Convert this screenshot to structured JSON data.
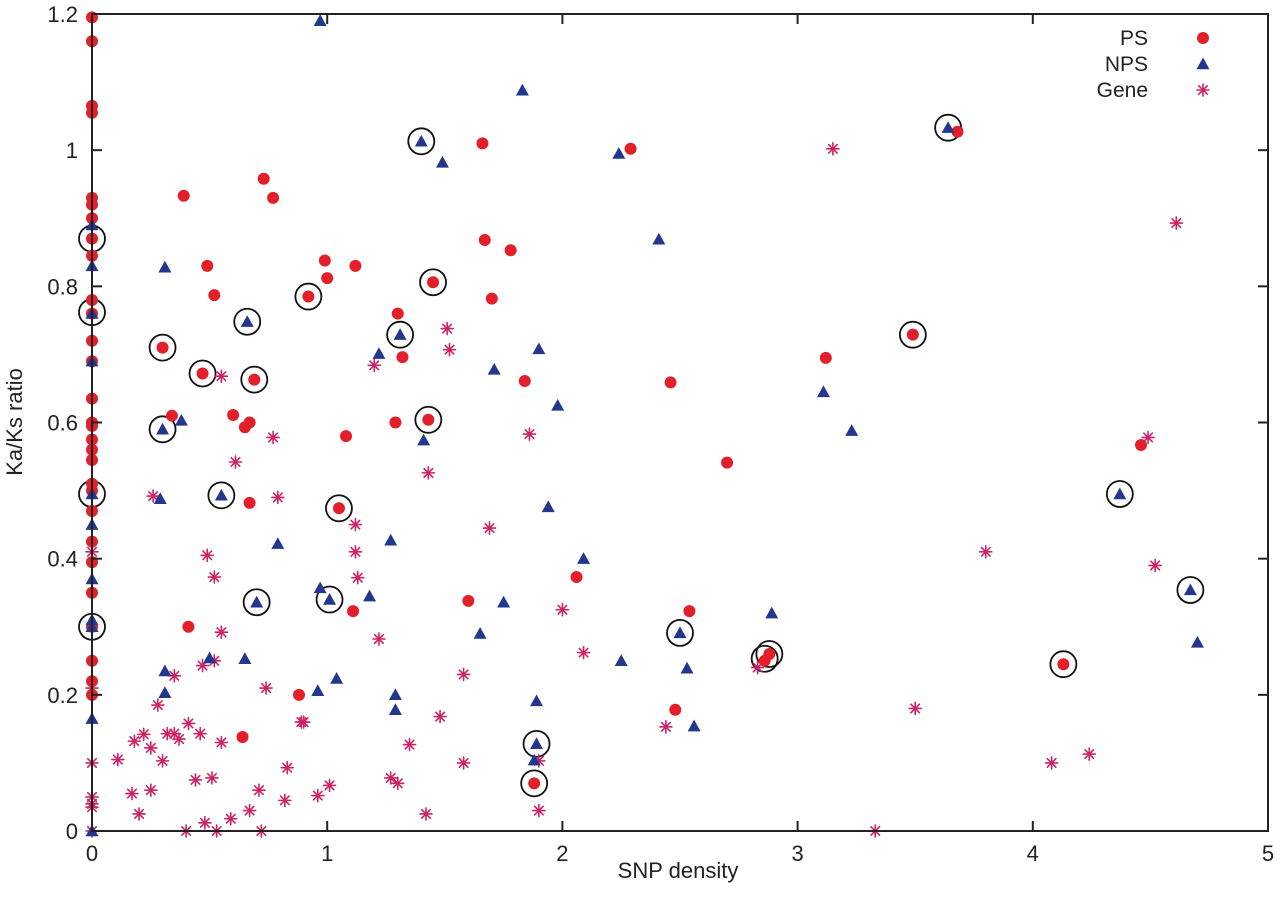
{
  "chart_data": {
    "type": "scatter",
    "xlabel": "SNP density",
    "ylabel": "Ka/Ks ratio",
    "xlim": [
      0,
      5
    ],
    "ylim": [
      0,
      1.2
    ],
    "x_ticks": [
      0,
      1,
      2,
      3,
      4,
      5
    ],
    "y_ticks": [
      0,
      0.2,
      0.4,
      0.6,
      0.8,
      1,
      1.2
    ],
    "x_tick_labels": [
      "0",
      "1",
      "2",
      "3",
      "4",
      "5"
    ],
    "y_tick_labels": [
      "0",
      "0.2",
      "0.4",
      "0.6",
      "0.8",
      "1",
      "1.2"
    ],
    "grid": false,
    "legend_position": "top-right",
    "series": [
      {
        "name": "PS",
        "marker": "circle",
        "color": "#e3202a",
        "points": [
          [
            0,
            1.195
          ],
          [
            0,
            1.16
          ],
          [
            0,
            1.065
          ],
          [
            0,
            1.055
          ],
          [
            0,
            0.93
          ],
          [
            0,
            0.92
          ],
          [
            0,
            0.9
          ],
          [
            0,
            0.87
          ],
          [
            0,
            0.845
          ],
          [
            0,
            0.78
          ],
          [
            0,
            0.76
          ],
          [
            0,
            0.72
          ],
          [
            0,
            0.69
          ],
          [
            0,
            0.635
          ],
          [
            0,
            0.6
          ],
          [
            0,
            0.595
          ],
          [
            0,
            0.575
          ],
          [
            0,
            0.56
          ],
          [
            0,
            0.545
          ],
          [
            0,
            0.51
          ],
          [
            0,
            0.5
          ],
          [
            0,
            0.47
          ],
          [
            0,
            0.425
          ],
          [
            0,
            0.395
          ],
          [
            0,
            0.35
          ],
          [
            0,
            0.3
          ],
          [
            0,
            0.25
          ],
          [
            0,
            0.22
          ],
          [
            0,
            0.2
          ],
          [
            0.3,
            0.71
          ],
          [
            0.34,
            0.61
          ],
          [
            0.39,
            0.933
          ],
          [
            0.41,
            0.3
          ],
          [
            0.47,
            0.672
          ],
          [
            0.49,
            0.83
          ],
          [
            0.52,
            0.787
          ],
          [
            0.6,
            0.611
          ],
          [
            0.64,
            0.138
          ],
          [
            0.65,
            0.593
          ],
          [
            0.67,
            0.6
          ],
          [
            0.67,
            0.482
          ],
          [
            0.69,
            0.663
          ],
          [
            0.73,
            0.958
          ],
          [
            0.77,
            0.93
          ],
          [
            0.88,
            0.2
          ],
          [
            0.92,
            0.785
          ],
          [
            0.99,
            0.838
          ],
          [
            1.0,
            0.812
          ],
          [
            1.05,
            0.474
          ],
          [
            1.08,
            0.58
          ],
          [
            1.11,
            0.323
          ],
          [
            1.12,
            0.83
          ],
          [
            1.29,
            0.6
          ],
          [
            1.3,
            0.76
          ],
          [
            1.32,
            0.696
          ],
          [
            1.43,
            0.604
          ],
          [
            1.45,
            0.806
          ],
          [
            1.6,
            0.338
          ],
          [
            1.66,
            1.01
          ],
          [
            1.67,
            0.868
          ],
          [
            1.7,
            0.782
          ],
          [
            1.78,
            0.853
          ],
          [
            1.84,
            0.661
          ],
          [
            1.88,
            0.07
          ],
          [
            2.06,
            0.373
          ],
          [
            2.29,
            1.002
          ],
          [
            2.46,
            0.659
          ],
          [
            2.48,
            0.178
          ],
          [
            2.54,
            0.323
          ],
          [
            2.7,
            0.541
          ],
          [
            2.86,
            0.25
          ],
          [
            2.88,
            0.26
          ],
          [
            3.12,
            0.695
          ],
          [
            3.49,
            0.729
          ],
          [
            3.68,
            1.027
          ],
          [
            4.13,
            0.245
          ],
          [
            4.46,
            0.567
          ]
        ]
      },
      {
        "name": "NPS",
        "marker": "triangle",
        "color": "#23378f",
        "points": [
          [
            0,
            0.89
          ],
          [
            0,
            0.83
          ],
          [
            0,
            0.76
          ],
          [
            0,
            0.69
          ],
          [
            0,
            0.495
          ],
          [
            0,
            0.45
          ],
          [
            0,
            0.37
          ],
          [
            0,
            0.31
          ],
          [
            0,
            0.3
          ],
          [
            0,
            0.165
          ],
          [
            0,
            0.0
          ],
          [
            0.29,
            0.488
          ],
          [
            0.3,
            0.59
          ],
          [
            0.31,
            0.828
          ],
          [
            0.31,
            0.235
          ],
          [
            0.31,
            0.203
          ],
          [
            0.38,
            0.603
          ],
          [
            0.5,
            0.254
          ],
          [
            0.55,
            0.493
          ],
          [
            0.65,
            0.253
          ],
          [
            0.66,
            0.748
          ],
          [
            0.7,
            0.336
          ],
          [
            0.79,
            0.422
          ],
          [
            0.96,
            0.206
          ],
          [
            0.97,
            1.19
          ],
          [
            0.97,
            0.357
          ],
          [
            1.01,
            0.34
          ],
          [
            1.04,
            0.224
          ],
          [
            1.18,
            0.345
          ],
          [
            1.22,
            0.701
          ],
          [
            1.27,
            0.427
          ],
          [
            1.29,
            0.2
          ],
          [
            1.29,
            0.178
          ],
          [
            1.31,
            0.729
          ],
          [
            1.4,
            1.013
          ],
          [
            1.41,
            0.574
          ],
          [
            1.49,
            0.982
          ],
          [
            1.65,
            0.29
          ],
          [
            1.71,
            0.678
          ],
          [
            1.75,
            0.336
          ],
          [
            1.83,
            1.088
          ],
          [
            1.88,
            0.104
          ],
          [
            1.89,
            0.191
          ],
          [
            1.89,
            0.128
          ],
          [
            1.9,
            0.708
          ],
          [
            1.94,
            0.476
          ],
          [
            1.98,
            0.625
          ],
          [
            2.09,
            0.4
          ],
          [
            2.24,
            0.995
          ],
          [
            2.25,
            0.25
          ],
          [
            2.41,
            0.869
          ],
          [
            2.5,
            0.291
          ],
          [
            2.53,
            0.239
          ],
          [
            2.56,
            0.154
          ],
          [
            2.89,
            0.32
          ],
          [
            3.11,
            0.645
          ],
          [
            3.23,
            0.588
          ],
          [
            3.64,
            1.033
          ],
          [
            4.37,
            0.495
          ],
          [
            4.67,
            0.354
          ],
          [
            4.7,
            0.277
          ]
        ]
      },
      {
        "name": "Gene",
        "marker": "asterisk",
        "color": "#cc2266",
        "points": [
          [
            0,
            0.41
          ],
          [
            0,
            0.21
          ],
          [
            0,
            0.1
          ],
          [
            0,
            0.05
          ],
          [
            0,
            0.04
          ],
          [
            0,
            0.035
          ],
          [
            0,
            0.0
          ],
          [
            0.11,
            0.105
          ],
          [
            0.17,
            0.055
          ],
          [
            0.18,
            0.132
          ],
          [
            0.2,
            0.025
          ],
          [
            0.22,
            0.142
          ],
          [
            0.25,
            0.06
          ],
          [
            0.25,
            0.122
          ],
          [
            0.26,
            0.492
          ],
          [
            0.28,
            0.185
          ],
          [
            0.3,
            0.103
          ],
          [
            0.32,
            0.143
          ],
          [
            0.35,
            0.228
          ],
          [
            0.35,
            0.143
          ],
          [
            0.37,
            0.135
          ],
          [
            0.4,
            0.0
          ],
          [
            0.41,
            0.158
          ],
          [
            0.44,
            0.075
          ],
          [
            0.46,
            0.143
          ],
          [
            0.47,
            0.243
          ],
          [
            0.48,
            0.012
          ],
          [
            0.49,
            0.405
          ],
          [
            0.51,
            0.078
          ],
          [
            0.52,
            0.373
          ],
          [
            0.52,
            0.25
          ],
          [
            0.53,
            0.0
          ],
          [
            0.55,
            0.668
          ],
          [
            0.55,
            0.292
          ],
          [
            0.55,
            0.13
          ],
          [
            0.59,
            0.018
          ],
          [
            0.61,
            0.542
          ],
          [
            0.67,
            0.03
          ],
          [
            0.71,
            0.06
          ],
          [
            0.72,
            0.0
          ],
          [
            0.74,
            0.21
          ],
          [
            0.77,
            0.578
          ],
          [
            0.79,
            0.49
          ],
          [
            0.82,
            0.045
          ],
          [
            0.83,
            0.093
          ],
          [
            0.89,
            0.16
          ],
          [
            0.9,
            0.16
          ],
          [
            0.96,
            0.052
          ],
          [
            1.01,
            0.067
          ],
          [
            1.12,
            0.45
          ],
          [
            1.12,
            0.41
          ],
          [
            1.13,
            0.372
          ],
          [
            1.2,
            0.684
          ],
          [
            1.22,
            0.282
          ],
          [
            1.27,
            0.078
          ],
          [
            1.3,
            0.07
          ],
          [
            1.35,
            0.127
          ],
          [
            1.42,
            0.025
          ],
          [
            1.43,
            0.526
          ],
          [
            1.48,
            0.168
          ],
          [
            1.51,
            0.738
          ],
          [
            1.52,
            0.707
          ],
          [
            1.58,
            0.23
          ],
          [
            1.58,
            0.1
          ],
          [
            1.69,
            0.445
          ],
          [
            1.86,
            0.583
          ],
          [
            1.9,
            0.103
          ],
          [
            1.9,
            0.03
          ],
          [
            2.0,
            0.325
          ],
          [
            2.09,
            0.262
          ],
          [
            2.44,
            0.153
          ],
          [
            2.83,
            0.24
          ],
          [
            3.15,
            1.002
          ],
          [
            3.33,
            0.0
          ],
          [
            3.5,
            0.18
          ],
          [
            3.8,
            0.41
          ],
          [
            4.08,
            0.1
          ],
          [
            4.24,
            0.113
          ],
          [
            4.49,
            0.578
          ],
          [
            4.52,
            0.39
          ],
          [
            4.61,
            0.893
          ]
        ]
      }
    ],
    "highlighted_points": [
      [
        0,
        0.87
      ],
      [
        0,
        0.762
      ],
      [
        0,
        0.495
      ],
      [
        0,
        0.3
      ],
      [
        0.3,
        0.71
      ],
      [
        0.3,
        0.59
      ],
      [
        0.47,
        0.672
      ],
      [
        0.55,
        0.493
      ],
      [
        0.66,
        0.748
      ],
      [
        0.69,
        0.663
      ],
      [
        0.7,
        0.336
      ],
      [
        0.92,
        0.785
      ],
      [
        1.01,
        0.34
      ],
      [
        1.05,
        0.474
      ],
      [
        1.31,
        0.729
      ],
      [
        1.4,
        1.013
      ],
      [
        1.43,
        0.604
      ],
      [
        1.45,
        0.806
      ],
      [
        1.88,
        0.07
      ],
      [
        1.89,
        0.128
      ],
      [
        2.5,
        0.291
      ],
      [
        2.86,
        0.253
      ],
      [
        2.88,
        0.26
      ],
      [
        3.49,
        0.729
      ],
      [
        3.64,
        1.033
      ],
      [
        4.13,
        0.245
      ],
      [
        4.37,
        0.495
      ],
      [
        4.67,
        0.354
      ]
    ]
  }
}
